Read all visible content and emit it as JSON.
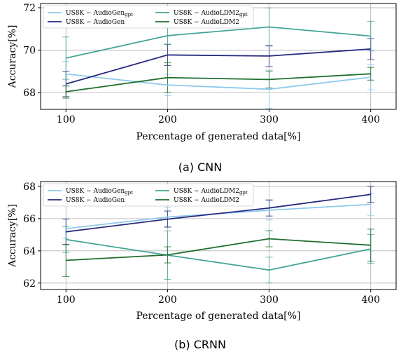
{
  "chart_data": [
    {
      "type": "line",
      "caption": "(a) CNN",
      "xlabel": "Percentage of generated data[%]",
      "ylabel": "Accuracy[%]",
      "x": [
        100,
        200,
        300,
        400
      ],
      "xlim": [
        75,
        425
      ],
      "ylim": [
        67.2,
        72.2
      ],
      "x_ticks": [
        "100",
        "200",
        "300",
        "400"
      ],
      "y_ticks": [
        "68",
        "70",
        "72"
      ],
      "grid": true,
      "legend_position": "top-left",
      "series": [
        {
          "name": "US8K − AudioGen",
          "name_sub": "gpt",
          "color": "#8ec9ec",
          "values": [
            68.87,
            68.35,
            68.15,
            68.72
          ],
          "err": [
            0.6,
            0.5,
            0.9,
            0.6
          ]
        },
        {
          "name": "US8K − AudioGen",
          "name_sub": "",
          "color": "#272a7e",
          "values": [
            68.4,
            69.77,
            69.72,
            70.05
          ],
          "err": [
            0.6,
            0.5,
            0.5,
            0.5
          ]
        },
        {
          "name": "US8K − AudioLDM2",
          "name_sub": "gpt",
          "color": "#43a597",
          "values": [
            69.62,
            70.68,
            71.09,
            70.66
          ],
          "err": [
            1.0,
            0.4,
            0.9,
            0.7
          ]
        },
        {
          "name": "US8K − AudioLDM2",
          "name_sub": "",
          "color": "#1f6f2f",
          "values": [
            68.03,
            68.7,
            68.61,
            68.88
          ],
          "err": [
            0.3,
            0.7,
            0.4,
            0.3
          ]
        }
      ]
    },
    {
      "type": "line",
      "caption": "(b) CRNN",
      "xlabel": "Percentage of generated data[%]",
      "ylabel": "Accuracy[%]",
      "x": [
        100,
        200,
        300,
        400
      ],
      "xlim": [
        75,
        425
      ],
      "ylim": [
        61.6,
        68.3
      ],
      "x_ticks": [
        "100",
        "200",
        "300",
        "400"
      ],
      "y_ticks": [
        "62",
        "64",
        "66",
        "68"
      ],
      "grid": true,
      "legend_position": "top-left",
      "series": [
        {
          "name": "US8K − AudioGen",
          "name_sub": "gpt",
          "color": "#8ec9ec",
          "values": [
            65.38,
            66.1,
            66.52,
            66.88
          ],
          "err": [
            0.6,
            0.6,
            0.6,
            0.7
          ]
        },
        {
          "name": "US8K − AudioGen",
          "name_sub": "",
          "color": "#272a7e",
          "values": [
            65.18,
            65.97,
            66.66,
            67.5
          ],
          "err": [
            0.8,
            0.5,
            0.5,
            0.5
          ]
        },
        {
          "name": "US8K − AudioLDM2",
          "name_sub": "gpt",
          "color": "#43a597",
          "values": [
            64.7,
            63.73,
            62.81,
            64.12
          ],
          "err": [
            0.8,
            1.5,
            0.8,
            0.9
          ]
        },
        {
          "name": "US8K − AudioLDM2",
          "name_sub": "",
          "color": "#1f6f2f",
          "values": [
            63.41,
            63.75,
            64.75,
            64.35
          ],
          "err": [
            1.0,
            0.5,
            0.5,
            1.0
          ]
        }
      ]
    }
  ]
}
